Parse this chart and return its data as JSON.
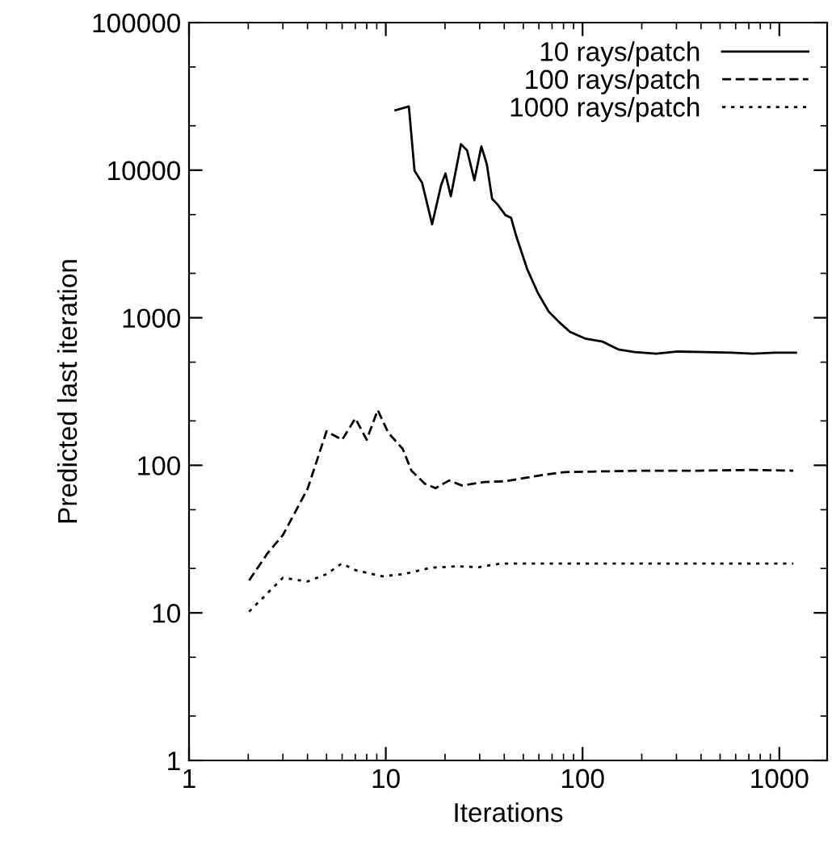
{
  "chart_data": {
    "type": "line",
    "xlabel": "Iterations",
    "ylabel": "Predicted last iteration",
    "log": "xy",
    "xlim": [
      1,
      1750
    ],
    "ylim": [
      1,
      100000
    ],
    "xticks": [
      1,
      10,
      100,
      1000
    ],
    "yticks": [
      1,
      10,
      100,
      1000,
      10000,
      100000
    ],
    "grid": false,
    "legend": "top right",
    "marker": "none",
    "series": [
      {
        "name": "10 rays/patch",
        "color": "#000000",
        "line_style": "solid",
        "x": [
          11.2,
          13.1,
          14.0,
          15.3,
          17.2,
          19.1,
          20.1,
          21.4,
          24.1,
          25.9,
          28.2,
          30.6,
          32.6,
          34.7,
          37.0,
          40.6,
          43.3,
          46.1,
          52.3,
          59.3,
          67.3,
          76.3,
          86.5,
          104,
          126,
          152,
          184,
          237,
          305,
          417,
          571,
          735,
          945,
          1215
        ],
        "values": [
          25500,
          27000,
          9900,
          8200,
          4300,
          7900,
          9500,
          6650,
          15000,
          13600,
          8550,
          14500,
          11000,
          6400,
          5850,
          4950,
          4760,
          3550,
          2140,
          1470,
          1100,
          930,
          800,
          720,
          690,
          610,
          585,
          570,
          590,
          585,
          580,
          570,
          580,
          580
        ]
      },
      {
        "name": "100 rays/patch",
        "color": "#000000",
        "line_style": "dashed",
        "x": [
          2.02,
          2.5,
          3.0,
          4.0,
          5.0,
          6.0,
          7.0,
          8.0,
          9.1,
          10.3,
          12.2,
          13.5,
          15.8,
          17.9,
          21.0,
          24.3,
          31.6,
          40.6,
          59.3,
          81.3,
          209,
          392,
          735,
          1178
        ],
        "values": [
          16.6,
          25.2,
          33.7,
          69,
          170,
          149,
          208,
          149,
          237,
          166,
          129,
          92,
          75,
          70,
          79,
          73,
          77,
          78,
          85,
          90,
          92,
          92,
          93,
          92
        ]
      },
      {
        "name": "1000 rays/patch",
        "color": "#000000",
        "line_style": "dotted",
        "x": [
          2.02,
          3.0,
          4.0,
          5.0,
          5.97,
          7.0,
          9.6,
          12.3,
          16.9,
          23.1,
          29.7,
          38.2,
          59.3,
          209,
          1178
        ],
        "values": [
          10.2,
          17.3,
          16.3,
          18.3,
          21.6,
          19.5,
          17.7,
          18.3,
          20.2,
          20.7,
          20.4,
          21.6,
          21.6,
          21.6,
          21.6
        ]
      }
    ]
  }
}
